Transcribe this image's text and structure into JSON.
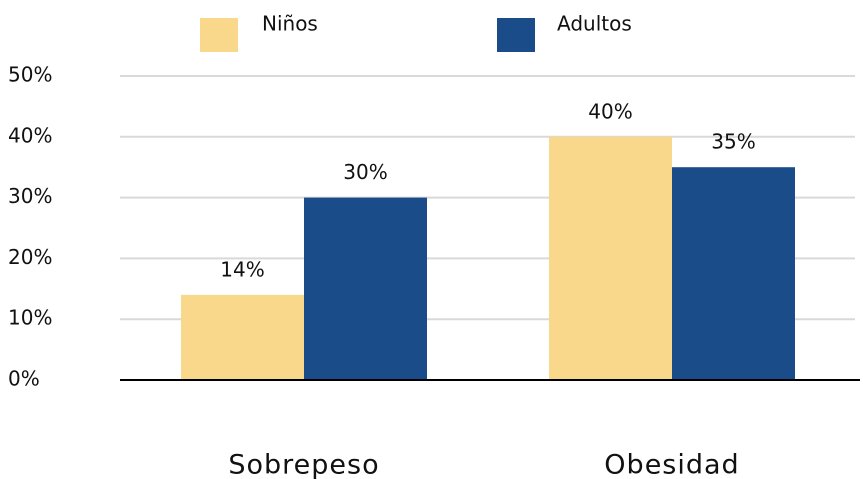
{
  "chart_data": {
    "type": "bar",
    "categories": [
      "Sobrepeso",
      "Obesidad"
    ],
    "series": [
      {
        "name": "Niños",
        "color": "#f9d88b",
        "values": [
          14,
          40
        ],
        "value_labels": [
          "14%",
          "40%"
        ]
      },
      {
        "name": "Adultos",
        "color": "#1b4c8a",
        "values": [
          30,
          35
        ],
        "value_labels": [
          "30%",
          "35%"
        ]
      }
    ],
    "ylim": [
      0,
      50
    ],
    "yticks": [
      {
        "value": 0,
        "label": "0%"
      },
      {
        "value": 10,
        "label": "10%"
      },
      {
        "value": 20,
        "label": "20%"
      },
      {
        "value": 30,
        "label": "30%"
      },
      {
        "value": 40,
        "label": "40%"
      },
      {
        "value": 50,
        "label": "50%"
      }
    ],
    "grid": true
  }
}
